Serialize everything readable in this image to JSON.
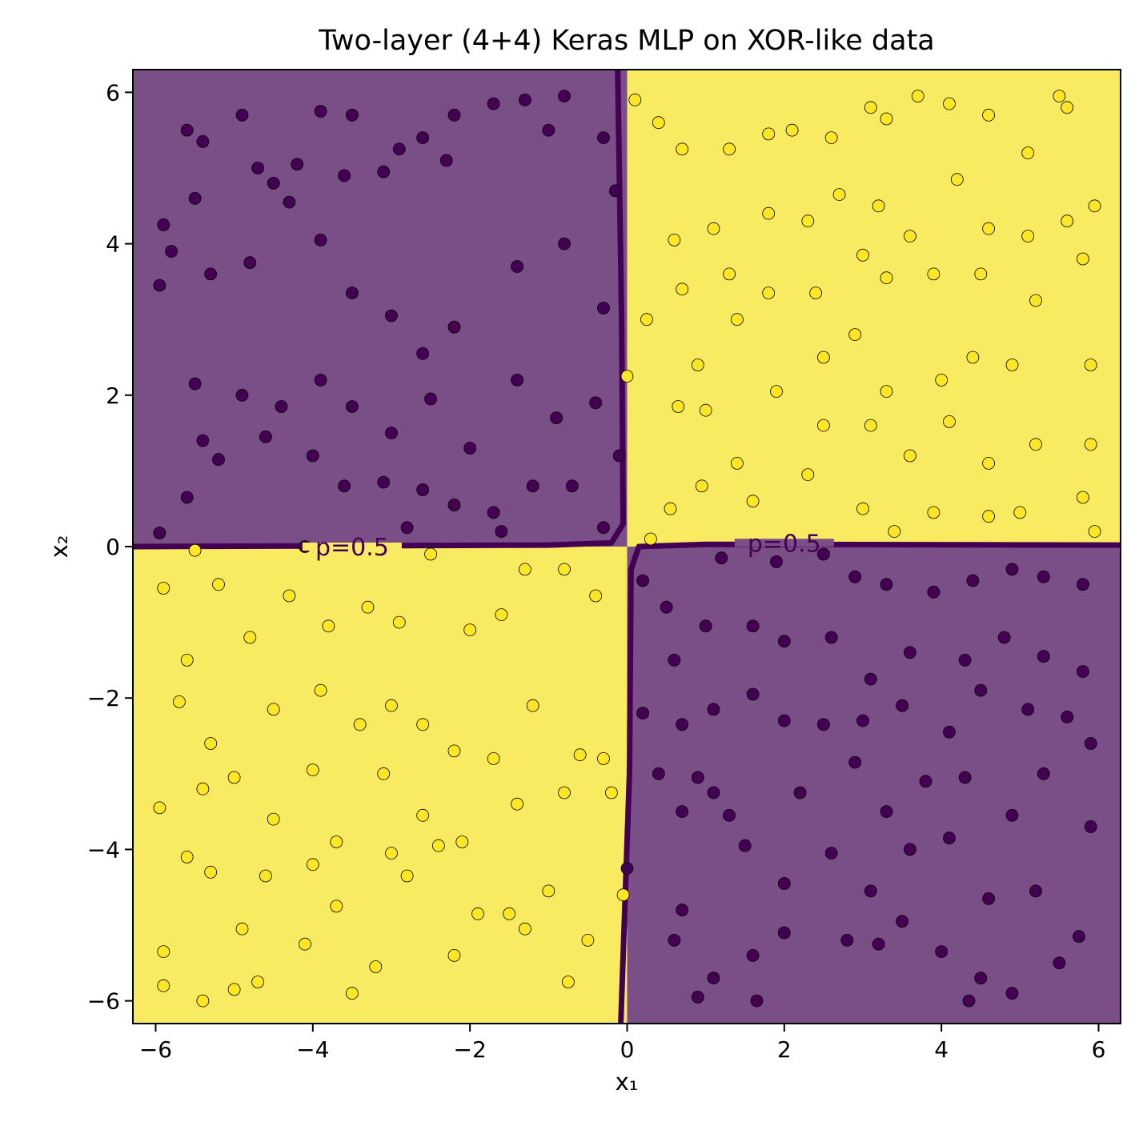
{
  "chart_data": {
    "type": "scatter",
    "title": "Two-layer (4+4) Keras MLP on XOR-like data",
    "xlabel": "x₁",
    "ylabel": "x₂",
    "xlim": [
      -6.29,
      6.28
    ],
    "ylim": [
      -6.3,
      6.3
    ],
    "xticks": [
      -6,
      -4,
      -2,
      0,
      2,
      4,
      6
    ],
    "yticks": [
      -6,
      -4,
      -2,
      0,
      2,
      4,
      6
    ],
    "xtick_labels": [
      "−6",
      "−4",
      "−2",
      "0",
      "2",
      "4",
      "6"
    ],
    "ytick_labels": [
      "−6",
      "−4",
      "−2",
      "0",
      "2",
      "4",
      "6"
    ],
    "grid": false,
    "colors": {
      "class0": "#440154",
      "class1": "#fde725",
      "region0": "#7a4f88",
      "region1": "#f8eb62",
      "contour": "#440154"
    },
    "regions": [
      {
        "class": 0,
        "x": [
          -6.29,
          0
        ],
        "y": [
          0,
          6.3
        ]
      },
      {
        "class": 1,
        "x": [
          0,
          6.28
        ],
        "y": [
          0,
          6.3
        ]
      },
      {
        "class": 1,
        "x": [
          -6.29,
          0
        ],
        "y": [
          -6.3,
          0
        ]
      },
      {
        "class": 0,
        "x": [
          0,
          6.28
        ],
        "y": [
          -6.3,
          0
        ]
      }
    ],
    "contour_level": 0.5,
    "contour_labels": [
      {
        "text": "p=0.5",
        "x": -3.5,
        "y": 0.0
      },
      {
        "text": "p=0.5",
        "x": 2.0,
        "y": 0.05
      }
    ],
    "contour_lines": [
      [
        [
          -0.12,
          6.3
        ],
        [
          -0.07,
          3.0
        ],
        [
          -0.05,
          0.3
        ],
        [
          -0.2,
          0.05
        ],
        [
          -1.0,
          0.02
        ],
        [
          -6.29,
          0.0
        ]
      ],
      [
        [
          6.28,
          0.02
        ],
        [
          1.0,
          0.03
        ],
        [
          0.15,
          0.0
        ],
        [
          0.05,
          -0.3
        ],
        [
          0.03,
          -3.0
        ],
        [
          -0.08,
          -6.3
        ]
      ]
    ],
    "series": [
      {
        "name": "class 0",
        "class": 0,
        "points": [
          [
            -5.9,
            4.25
          ],
          [
            -5.6,
            5.5
          ],
          [
            -5.4,
            5.35
          ],
          [
            -5.5,
            4.6
          ],
          [
            -5.8,
            3.9
          ],
          [
            -5.95,
            3.45
          ],
          [
            -5.3,
            3.6
          ],
          [
            -4.9,
            5.7
          ],
          [
            -4.7,
            5.0
          ],
          [
            -4.5,
            4.8
          ],
          [
            -4.2,
            5.05
          ],
          [
            -3.9,
            5.75
          ],
          [
            -3.6,
            4.9
          ],
          [
            -3.5,
            5.7
          ],
          [
            -3.1,
            4.95
          ],
          [
            -2.9,
            5.25
          ],
          [
            -2.6,
            5.4
          ],
          [
            -2.3,
            5.1
          ],
          [
            -2.2,
            5.7
          ],
          [
            -1.7,
            5.85
          ],
          [
            -1.3,
            5.9
          ],
          [
            -1.0,
            5.5
          ],
          [
            -0.8,
            5.95
          ],
          [
            -0.3,
            5.4
          ],
          [
            -4.8,
            3.75
          ],
          [
            -4.3,
            4.55
          ],
          [
            -3.9,
            4.05
          ],
          [
            -3.5,
            3.35
          ],
          [
            -3.0,
            3.05
          ],
          [
            -2.6,
            2.55
          ],
          [
            -2.2,
            2.9
          ],
          [
            -1.4,
            3.7
          ],
          [
            -0.8,
            4.0
          ],
          [
            -0.3,
            3.15
          ],
          [
            -5.5,
            2.15
          ],
          [
            -5.2,
            1.15
          ],
          [
            -4.9,
            2.0
          ],
          [
            -4.4,
            1.85
          ],
          [
            -3.9,
            2.2
          ],
          [
            -3.5,
            1.85
          ],
          [
            -3.0,
            1.5
          ],
          [
            -2.5,
            1.95
          ],
          [
            -2.0,
            1.3
          ],
          [
            -1.4,
            2.2
          ],
          [
            -0.9,
            1.7
          ],
          [
            -0.4,
            1.9
          ],
          [
            -5.4,
            1.4
          ],
          [
            -4.6,
            1.45
          ],
          [
            -4.0,
            1.2
          ],
          [
            -3.6,
            0.8
          ],
          [
            -3.1,
            0.85
          ],
          [
            -2.6,
            0.75
          ],
          [
            -2.2,
            0.55
          ],
          [
            -1.7,
            0.45
          ],
          [
            -1.2,
            0.8
          ],
          [
            -0.7,
            0.8
          ],
          [
            -0.3,
            0.25
          ],
          [
            -5.95,
            0.18
          ],
          [
            -5.6,
            0.65
          ],
          [
            -4.1,
            0.0
          ],
          [
            -2.8,
            0.25
          ],
          [
            -1.6,
            0.2
          ],
          [
            -0.1,
            1.2
          ],
          [
            -0.15,
            4.7
          ],
          [
            0.2,
            -0.45
          ],
          [
            0.5,
            -0.8
          ],
          [
            1.2,
            -0.15
          ],
          [
            1.9,
            -0.2
          ],
          [
            2.5,
            -0.1
          ],
          [
            2.9,
            -0.4
          ],
          [
            3.3,
            -0.5
          ],
          [
            3.9,
            -0.6
          ],
          [
            4.4,
            -0.45
          ],
          [
            4.9,
            -0.3
          ],
          [
            5.3,
            -0.4
          ],
          [
            5.8,
            -0.5
          ],
          [
            0.6,
            -1.5
          ],
          [
            1.0,
            -1.05
          ],
          [
            1.6,
            -1.05
          ],
          [
            2.0,
            -1.25
          ],
          [
            2.6,
            -1.2
          ],
          [
            3.1,
            -1.75
          ],
          [
            3.6,
            -1.4
          ],
          [
            4.3,
            -1.5
          ],
          [
            4.8,
            -1.2
          ],
          [
            5.3,
            -1.45
          ],
          [
            5.8,
            -1.65
          ],
          [
            0.2,
            -2.2
          ],
          [
            0.7,
            -2.35
          ],
          [
            1.1,
            -2.15
          ],
          [
            1.6,
            -1.95
          ],
          [
            2.0,
            -2.3
          ],
          [
            2.5,
            -2.35
          ],
          [
            3.0,
            -2.3
          ],
          [
            3.5,
            -2.1
          ],
          [
            4.1,
            -2.45
          ],
          [
            4.5,
            -1.9
          ],
          [
            5.1,
            -2.15
          ],
          [
            5.6,
            -2.25
          ],
          [
            0.4,
            -3.0
          ],
          [
            0.9,
            -3.05
          ],
          [
            1.1,
            -3.25
          ],
          [
            2.2,
            -3.25
          ],
          [
            2.9,
            -2.85
          ],
          [
            3.3,
            -3.5
          ],
          [
            3.8,
            -3.1
          ],
          [
            4.3,
            -3.05
          ],
          [
            4.9,
            -3.55
          ],
          [
            5.3,
            -3.0
          ],
          [
            5.9,
            -2.6
          ],
          [
            0.7,
            -3.5
          ],
          [
            1.3,
            -3.55
          ],
          [
            1.5,
            -3.95
          ],
          [
            2.0,
            -4.45
          ],
          [
            2.6,
            -4.05
          ],
          [
            3.1,
            -4.55
          ],
          [
            3.6,
            -4.0
          ],
          [
            4.1,
            -3.85
          ],
          [
            4.6,
            -4.65
          ],
          [
            5.2,
            -4.55
          ],
          [
            5.9,
            -3.7
          ],
          [
            0.6,
            -5.2
          ],
          [
            1.1,
            -5.7
          ],
          [
            1.6,
            -5.4
          ],
          [
            2.0,
            -5.1
          ],
          [
            2.8,
            -5.2
          ],
          [
            3.2,
            -5.25
          ],
          [
            3.5,
            -4.95
          ],
          [
            4.0,
            -5.35
          ],
          [
            4.5,
            -5.7
          ],
          [
            4.9,
            -5.9
          ],
          [
            5.5,
            -5.5
          ],
          [
            5.75,
            -5.15
          ],
          [
            0.9,
            -5.95
          ],
          [
            1.65,
            -6.0
          ],
          [
            4.35,
            -6.0
          ],
          [
            0.0,
            -4.25
          ],
          [
            0.7,
            -4.8
          ]
        ]
      },
      {
        "name": "class 1",
        "class": 1,
        "points": [
          [
            0.1,
            5.9
          ],
          [
            0.4,
            5.6
          ],
          [
            0.7,
            5.25
          ],
          [
            1.3,
            5.25
          ],
          [
            1.8,
            5.45
          ],
          [
            2.1,
            5.5
          ],
          [
            2.6,
            5.4
          ],
          [
            3.1,
            5.8
          ],
          [
            3.3,
            5.65
          ],
          [
            3.7,
            5.95
          ],
          [
            4.1,
            5.85
          ],
          [
            4.6,
            5.7
          ],
          [
            5.1,
            5.2
          ],
          [
            5.6,
            5.8
          ],
          [
            5.5,
            5.95
          ],
          [
            0.6,
            4.05
          ],
          [
            1.1,
            4.2
          ],
          [
            1.8,
            4.4
          ],
          [
            2.3,
            4.3
          ],
          [
            2.7,
            4.65
          ],
          [
            3.2,
            4.5
          ],
          [
            3.6,
            4.1
          ],
          [
            4.2,
            4.85
          ],
          [
            4.6,
            4.2
          ],
          [
            5.1,
            4.1
          ],
          [
            5.6,
            4.3
          ],
          [
            5.95,
            4.5
          ],
          [
            0.7,
            3.4
          ],
          [
            1.3,
            3.6
          ],
          [
            1.8,
            3.35
          ],
          [
            2.4,
            3.35
          ],
          [
            3.0,
            3.85
          ],
          [
            3.3,
            3.55
          ],
          [
            3.9,
            3.6
          ],
          [
            4.5,
            3.6
          ],
          [
            5.2,
            3.25
          ],
          [
            5.8,
            3.8
          ],
          [
            0.25,
            3.0
          ],
          [
            0.9,
            2.4
          ],
          [
            1.4,
            3.0
          ],
          [
            1.9,
            2.05
          ],
          [
            2.5,
            2.5
          ],
          [
            2.9,
            2.8
          ],
          [
            3.3,
            2.05
          ],
          [
            4.0,
            2.2
          ],
          [
            4.4,
            2.5
          ],
          [
            4.9,
            2.4
          ],
          [
            5.9,
            2.4
          ],
          [
            0.65,
            1.85
          ],
          [
            1.0,
            1.8
          ],
          [
            1.4,
            1.1
          ],
          [
            2.5,
            1.6
          ],
          [
            3.1,
            1.6
          ],
          [
            3.6,
            1.2
          ],
          [
            4.1,
            1.65
          ],
          [
            4.6,
            1.1
          ],
          [
            5.2,
            1.35
          ],
          [
            5.9,
            1.35
          ],
          [
            0.55,
            0.5
          ],
          [
            0.95,
            0.8
          ],
          [
            1.6,
            0.6
          ],
          [
            2.3,
            0.95
          ],
          [
            3.0,
            0.5
          ],
          [
            3.4,
            0.2
          ],
          [
            3.9,
            0.45
          ],
          [
            4.6,
            0.4
          ],
          [
            5.0,
            0.45
          ],
          [
            5.8,
            0.65
          ],
          [
            5.95,
            0.2
          ],
          [
            0.0,
            2.25
          ],
          [
            0.3,
            0.1
          ],
          [
            -5.9,
            -0.55
          ],
          [
            -5.5,
            -0.05
          ],
          [
            -5.2,
            -0.5
          ],
          [
            -4.8,
            -1.2
          ],
          [
            -4.3,
            -0.65
          ],
          [
            -3.8,
            -1.05
          ],
          [
            -3.3,
            -0.8
          ],
          [
            -2.9,
            -1.0
          ],
          [
            -2.5,
            -0.1
          ],
          [
            -2.0,
            -1.1
          ],
          [
            -1.6,
            -0.9
          ],
          [
            -1.3,
            -0.3
          ],
          [
            -0.8,
            -0.3
          ],
          [
            -0.4,
            -0.65
          ],
          [
            -5.6,
            -1.5
          ],
          [
            -5.7,
            -2.05
          ],
          [
            -5.3,
            -2.6
          ],
          [
            -4.5,
            -2.15
          ],
          [
            -3.9,
            -1.9
          ],
          [
            -3.4,
            -2.35
          ],
          [
            -3.0,
            -2.1
          ],
          [
            -2.6,
            -2.35
          ],
          [
            -2.2,
            -2.7
          ],
          [
            -1.7,
            -2.8
          ],
          [
            -1.2,
            -2.1
          ],
          [
            -0.6,
            -2.75
          ],
          [
            -0.3,
            -2.8
          ],
          [
            -5.95,
            -3.45
          ],
          [
            -5.4,
            -3.2
          ],
          [
            -5.0,
            -3.05
          ],
          [
            -4.5,
            -3.6
          ],
          [
            -4.0,
            -2.95
          ],
          [
            -3.7,
            -3.9
          ],
          [
            -3.1,
            -3.0
          ],
          [
            -2.6,
            -3.55
          ],
          [
            -2.1,
            -3.9
          ],
          [
            -1.4,
            -3.4
          ],
          [
            -0.8,
            -3.25
          ],
          [
            -0.2,
            -3.25
          ],
          [
            -5.9,
            -5.35
          ],
          [
            -5.6,
            -4.1
          ],
          [
            -5.3,
            -4.3
          ],
          [
            -4.9,
            -5.05
          ],
          [
            -4.6,
            -4.35
          ],
          [
            -4.1,
            -5.25
          ],
          [
            -3.7,
            -4.75
          ],
          [
            -3.2,
            -5.55
          ],
          [
            -2.8,
            -4.35
          ],
          [
            -2.4,
            -3.95
          ],
          [
            -1.9,
            -4.85
          ],
          [
            -1.5,
            -4.85
          ],
          [
            -1.0,
            -4.55
          ],
          [
            -0.5,
            -5.2
          ],
          [
            -0.05,
            -4.6
          ],
          [
            -5.9,
            -5.8
          ],
          [
            -5.4,
            -6.0
          ],
          [
            -5.0,
            -5.85
          ],
          [
            -4.7,
            -5.75
          ],
          [
            -3.5,
            -5.9
          ],
          [
            -2.2,
            -5.4
          ],
          [
            -1.3,
            -5.05
          ],
          [
            -0.75,
            -5.75
          ],
          [
            -4.0,
            -4.2
          ],
          [
            -3.0,
            -4.05
          ]
        ]
      }
    ]
  }
}
